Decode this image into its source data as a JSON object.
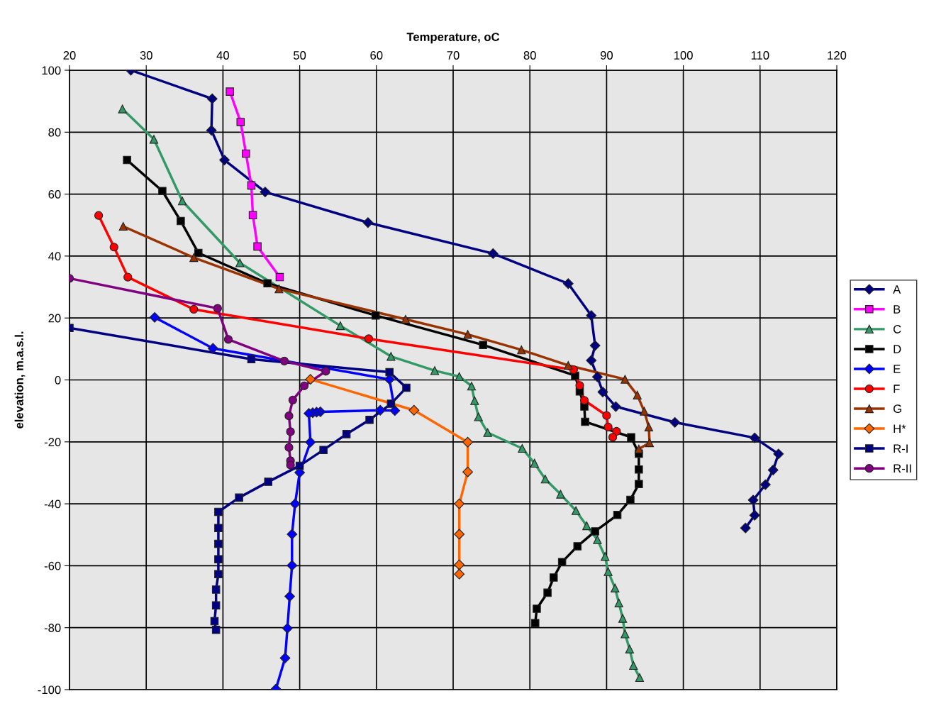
{
  "chart_data": {
    "type": "line",
    "xlabel": "Temperature, oC",
    "ylabel": "elevation, m.a.s.l.",
    "xlim": [
      20,
      120
    ],
    "xticks": [
      20,
      30,
      40,
      50,
      60,
      70,
      80,
      90,
      100,
      110,
      120
    ],
    "ylim": [
      -100,
      100
    ],
    "yticks": [
      -100,
      -80,
      -60,
      -40,
      -20,
      0,
      20,
      40,
      60,
      80,
      100
    ],
    "grid": true,
    "legend": "right",
    "line_style": "solid",
    "series": [
      {
        "name": "A",
        "color": "#000080",
        "marker": "diamond",
        "x": [
          28.0,
          38.6,
          38.5,
          40.2,
          45.5,
          58.9,
          75.2,
          85.0,
          88.0,
          88.5,
          88.0,
          88.8,
          89.5,
          91.2,
          98.9,
          109.3,
          112.4,
          111.7,
          110.7,
          109.1,
          109.3,
          108.1
        ],
        "values": [
          100,
          90.8,
          80.6,
          71.0,
          60.7,
          50.8,
          40.8,
          31.1,
          20.8,
          11.1,
          6.3,
          1.0,
          -3.9,
          -8.6,
          -13.7,
          -18.7,
          -23.9,
          -29.1,
          -33.8,
          -38.8,
          -43.7,
          -47.8
        ]
      },
      {
        "name": "B",
        "color": "#ff00ff",
        "marker": "square",
        "x": [
          40.9,
          42.3,
          43.0,
          43.7,
          43.9,
          44.5,
          47.4
        ],
        "values": [
          93.1,
          83.3,
          73.1,
          62.8,
          53.2,
          43.1,
          33.2
        ]
      },
      {
        "name": "C",
        "color": "#339966",
        "marker": "triangle",
        "x": [
          26.9,
          31.0,
          34.7,
          42.2,
          55.3,
          61.9,
          67.6,
          70.8,
          72.4,
          72.8,
          73.3,
          74.5,
          79.0,
          80.6,
          82.0,
          84.0,
          86.0,
          87.4,
          88.8,
          89.8,
          90.2,
          91.1,
          91.6,
          92.1,
          92.4,
          93.0,
          93.5,
          94.3
        ],
        "values": [
          87.5,
          77.7,
          57.8,
          37.8,
          17.5,
          7.6,
          3.0,
          1.1,
          -2.0,
          -6.7,
          -11.9,
          -17.0,
          -22.1,
          -26.9,
          -32.0,
          -36.9,
          -42.2,
          -47.1,
          -51.6,
          -57.0,
          -61.9,
          -67.2,
          -72.0,
          -77.0,
          -82.0,
          -86.9,
          -92.2,
          -96.1
        ]
      },
      {
        "name": "D",
        "color": "#000000",
        "marker": "square",
        "x": [
          27.5,
          32.1,
          34.5,
          36.8,
          45.8,
          59.9,
          73.9,
          85.9,
          86.5,
          87.1,
          87.2,
          93.2,
          94.2,
          94.2,
          94.2,
          93.1,
          91.4,
          88.5,
          86.2,
          84.2,
          83.1,
          82.3,
          80.9,
          80.7
        ],
        "values": [
          71.0,
          61.0,
          51.3,
          41.0,
          31.2,
          20.8,
          11.3,
          1.4,
          -3.7,
          -8.6,
          -13.5,
          -18.5,
          -23.8,
          -28.9,
          -33.6,
          -38.7,
          -43.6,
          -48.9,
          -53.7,
          -58.8,
          -63.8,
          -68.7,
          -73.9,
          -78.5
        ]
      },
      {
        "name": "E",
        "color": "#0000ff",
        "marker": "diamond",
        "x": [
          31.1,
          38.7,
          61.7,
          62.4,
          60.5,
          52.7,
          52.2,
          51.7,
          51.2,
          51.4,
          50.0,
          49.4,
          49.0,
          49.0,
          48.7,
          48.4,
          48.1,
          46.9
        ],
        "values": [
          20.2,
          10.2,
          0.2,
          -9.9,
          -9.8,
          -10.3,
          -10.4,
          -10.6,
          -10.8,
          -20.1,
          -29.9,
          -40.0,
          -49.8,
          -59.9,
          -69.9,
          -80.2,
          -89.8,
          -99.8
        ]
      },
      {
        "name": "F",
        "color": "#ff0000",
        "marker": "circle",
        "x": [
          23.8,
          25.8,
          27.6,
          36.2,
          59.0,
          85.7,
          86.5,
          87.1,
          90.0,
          90.2,
          91.3,
          90.8
        ],
        "values": [
          53.1,
          42.9,
          33.2,
          22.8,
          13.3,
          3.3,
          -1.8,
          -6.6,
          -11.5,
          -15.2,
          -16.6,
          -18.5
        ]
      },
      {
        "name": "G",
        "color": "#993300",
        "marker": "triangle",
        "x": [
          27.0,
          36.2,
          47.3,
          63.8,
          71.9,
          78.9,
          85.0,
          92.4,
          94.0,
          94.9,
          95.5,
          95.6,
          94.2
        ],
        "values": [
          49.6,
          39.5,
          29.4,
          19.6,
          14.7,
          9.7,
          4.7,
          0.2,
          -4.9,
          -10.1,
          -15.2,
          -20.3,
          -22.3
        ]
      },
      {
        "name": "H*",
        "color": "#ff6600",
        "marker": "diamond",
        "x": [
          51.4,
          64.9,
          71.9,
          71.9,
          70.8,
          70.8,
          70.8,
          70.8
        ],
        "values": [
          0.2,
          -9.8,
          -20.1,
          -29.7,
          -40.0,
          -49.8,
          -59.7,
          -62.7
        ]
      },
      {
        "name": "R-I",
        "color": "#000080",
        "marker": "square",
        "x": [
          20.0,
          43.7,
          61.7,
          63.9,
          61.9,
          59.1,
          56.1,
          53.1,
          50.0,
          45.9,
          42.1,
          39.4,
          39.4,
          39.4,
          39.4,
          39.4,
          39.1,
          39.1,
          38.9,
          39.1
        ],
        "values": [
          16.8,
          6.7,
          2.5,
          -2.5,
          -7.7,
          -12.9,
          -17.5,
          -22.6,
          -27.7,
          -32.9,
          -38.0,
          -42.6,
          -47.8,
          -52.9,
          -57.9,
          -62.7,
          -67.7,
          -72.8,
          -77.9,
          -80.7
        ]
      },
      {
        "name": "R-II",
        "color": "#800080",
        "marker": "circle",
        "x": [
          20.0,
          39.3,
          40.7,
          48.0,
          53.4,
          50.6,
          49.1,
          48.6,
          48.8,
          48.6,
          48.8,
          48.8
        ],
        "values": [
          32.8,
          23.1,
          13.1,
          6.1,
          2.8,
          -1.9,
          -6.5,
          -11.6,
          -16.7,
          -21.8,
          -26.1,
          -27.5
        ]
      }
    ]
  }
}
